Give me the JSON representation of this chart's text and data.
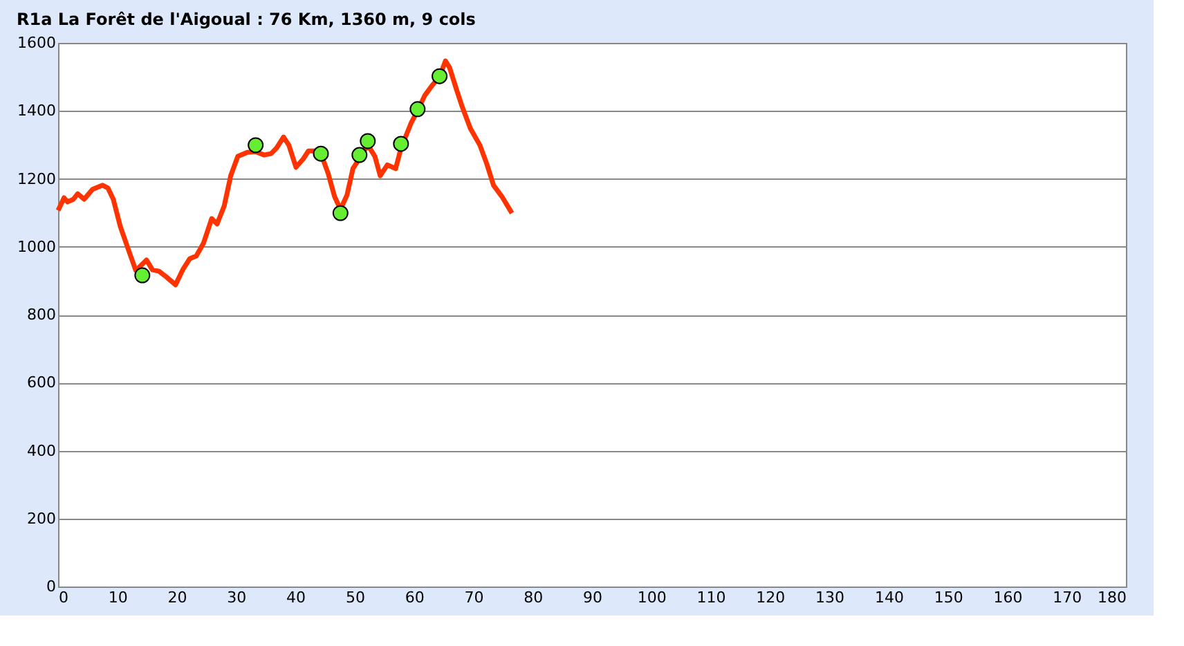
{
  "chart_data": {
    "type": "line",
    "title": "R1a La Forêt de l'Aigoual : 76  Km, 1360  m, 9  cols",
    "xlim": [
      0,
      180
    ],
    "xticks": [
      0,
      10,
      20,
      30,
      40,
      50,
      60,
      70,
      80,
      90,
      100,
      110,
      120,
      130,
      140,
      150,
      160,
      170,
      180
    ],
    "ylim": [
      0,
      1600
    ],
    "yticks": [
      0,
      200,
      400,
      600,
      800,
      1000,
      1200,
      1400,
      1600
    ],
    "grid": "y",
    "series": [
      {
        "color": "#ff3300",
        "marker": "none",
        "line_style": "solid",
        "x": [
          0,
          1,
          1.6,
          2.6,
          3.3,
          4.4,
          5.8,
          7.5,
          8.4,
          9.3,
          10.5,
          11.9,
          13.1,
          14.9,
          15.9,
          17,
          18.2,
          19.8,
          21,
          22.2,
          23.3,
          24.5,
          25.9,
          26.8,
          28,
          29.1,
          30.3,
          31.9,
          33.3,
          34.7,
          35.9,
          36.8,
          38,
          38.9,
          40.1,
          41.3,
          42.2,
          43.4,
          44.3,
          45.5,
          46.6,
          47.6,
          48.7,
          49.7,
          50.8,
          52.2,
          53.4,
          54.3,
          55.5,
          56.9,
          57.8,
          59.5,
          60.6,
          61.8,
          63.2,
          64.3,
          65.3,
          66,
          67.1,
          68.1,
          69.5,
          71.1,
          72.3,
          73.4,
          74.8,
          76.5
        ],
        "values": [
          1107,
          1144,
          1132,
          1140,
          1156,
          1140,
          1169,
          1181,
          1173,
          1140,
          1059,
          989,
          930,
          961,
          932,
          928,
          912,
          888,
          932,
          965,
          973,
          1010,
          1083,
          1067,
          1120,
          1209,
          1266,
          1278,
          1280,
          1270,
          1274,
          1290,
          1323,
          1299,
          1234,
          1258,
          1282,
          1282,
          1274,
          1217,
          1148,
          1110,
          1152,
          1230,
          1260,
          1300,
          1266,
          1209,
          1241,
          1230,
          1290,
          1364,
          1400,
          1445,
          1478,
          1500,
          1547,
          1527,
          1466,
          1413,
          1348,
          1299,
          1242,
          1181,
          1148,
          1099
        ]
      },
      {
        "type": "scatter",
        "color": "#66ee33",
        "marker": "circle",
        "x": [
          14.2,
          33.3,
          44.3,
          47.6,
          50.8,
          52.2,
          57.8,
          60.6,
          64.3
        ],
        "values": [
          916,
          1299,
          1274,
          1099,
          1270,
          1311,
          1303,
          1405,
          1502
        ]
      }
    ]
  }
}
